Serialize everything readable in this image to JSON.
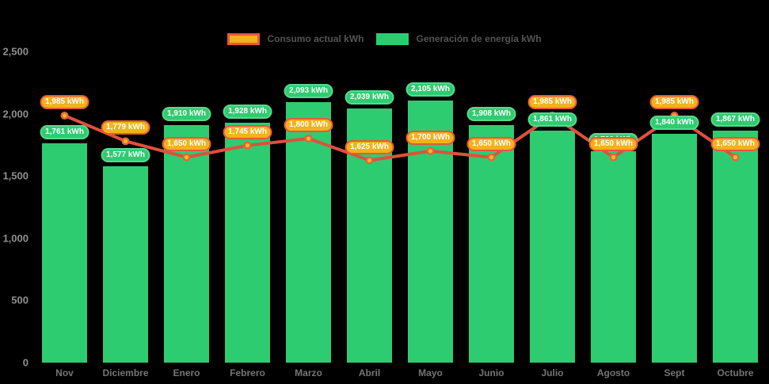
{
  "chart_data": {
    "type": "bar+line",
    "categories": [
      "Nov",
      "Diciembre",
      "Enero",
      "Febrero",
      "Marzo",
      "Abril",
      "Mayo",
      "Junio",
      "Julio",
      "Agosto",
      "Sept",
      "Octubre"
    ],
    "series": [
      {
        "name": "Consumo actual kWh",
        "type": "line",
        "values": [
          1985,
          1779,
          1650,
          1745,
          1800,
          1625,
          1700,
          1650,
          1985,
          1650,
          1985,
          1650
        ],
        "labels": [
          "1,985 kWh",
          "1,779 kWh",
          "1,650 kWh",
          "1,745 kWh",
          "1,800 kWh",
          "1,625 kWh",
          "1,700 kWh",
          "1,650 kWh",
          "1,985 kWh",
          "1,650 kWh",
          "1,985 kWh",
          "1,650 kWh"
        ],
        "line_color": "#e0503c",
        "point_fill": "#f4ba1c",
        "point_stroke": "#e8623c",
        "label_bg": "#f2b21b",
        "label_border": "#e8573c"
      },
      {
        "name": "Generación de energía kWh",
        "type": "bar",
        "values": [
          1761,
          1577,
          1910,
          1928,
          2093,
          2039,
          2105,
          1908,
          1861,
          1700,
          1840,
          1867
        ],
        "labels": [
          "1,761 kWh",
          "1,577 kWh",
          "1,910 kWh",
          "1,928 kWh",
          "2,093 kWh",
          "2,039 kWh",
          "2,105 kWh",
          "1,908 kWh",
          "1,861 kWh",
          "1,700 kWh",
          "1,840 kWh",
          "1,867 kWh"
        ],
        "bar_color": "#2ecc71",
        "label_bg": "#2ecc71",
        "label_border": "#58d98e"
      }
    ],
    "y_axis": {
      "tick_labels": [
        "0",
        "500",
        "1,000",
        "1,500",
        "2,000",
        "2,500"
      ],
      "tick_values": [
        0,
        500,
        1000,
        1500,
        2000,
        2500
      ],
      "min": 0,
      "max": 2500,
      "grid": false
    },
    "legend": {
      "position": "top",
      "items": [
        {
          "label": "Consumo actual kWh",
          "swatch_fill": "#f2b21b",
          "swatch_border": "#e8573c"
        },
        {
          "label": "Generación de energía kWh",
          "swatch_fill": "#2ecc71",
          "swatch_border": "#2ecc71"
        }
      ]
    },
    "unit": "kWh",
    "background": "#000000",
    "axis_text_color": "#8f8f8f"
  }
}
